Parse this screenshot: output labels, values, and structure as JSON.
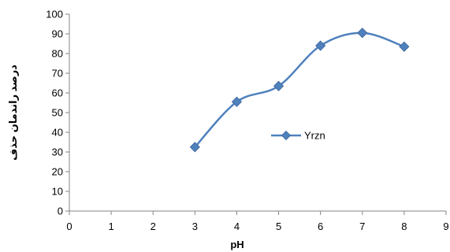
{
  "chart_data": {
    "type": "scatter",
    "title": "",
    "xlabel": "pH",
    "ylabel": "درصد راندمان حذف",
    "xlim": [
      0,
      9
    ],
    "ylim": [
      0,
      100
    ],
    "xticks": [
      0,
      1,
      2,
      3,
      4,
      5,
      6,
      7,
      8,
      9
    ],
    "yticks": [
      0,
      10,
      20,
      30,
      40,
      50,
      60,
      70,
      80,
      90,
      100
    ],
    "grid": false,
    "legend_position": "right",
    "line_style": "smoothed-with-diamond-markers",
    "series": [
      {
        "name": "Yrzn",
        "color": "#4F81BD",
        "x": [
          3,
          4,
          5,
          6,
          7,
          8
        ],
        "y": [
          32.5,
          55.5,
          63.5,
          84,
          90.5,
          83.5
        ]
      }
    ]
  }
}
